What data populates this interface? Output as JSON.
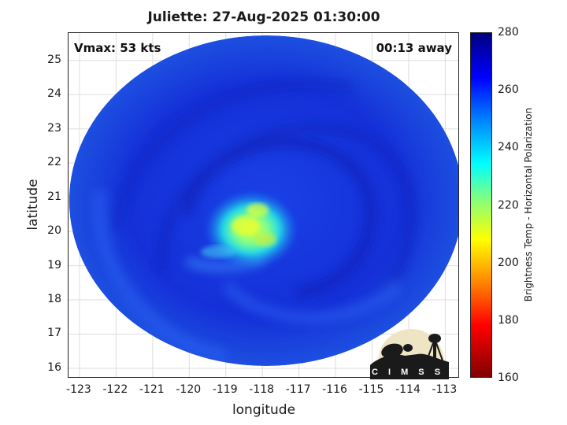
{
  "title": "Juliette: 27-Aug-2025 01:30:00",
  "vmax_label": "Vmax: 53 kts",
  "away_label": "00:13 away",
  "xlabel": "longitude",
  "ylabel": "latitude",
  "colorbar_label": "Brightness Temp - Horizontal Polarization",
  "x_ticks": [
    "-123",
    "-122",
    "-121",
    "-120",
    "-119",
    "-118",
    "-117",
    "-116",
    "-115",
    "-114",
    "-113"
  ],
  "y_ticks": [
    "25",
    "24",
    "23",
    "22",
    "21",
    "20",
    "19",
    "18",
    "17",
    "16"
  ],
  "colorbar_ticks": [
    "280",
    "260",
    "240",
    "220",
    "200",
    "180",
    "160"
  ],
  "logo_text": "CIMSS",
  "map": {
    "lon_range": [
      -123.3,
      -112.6
    ],
    "lat_range": [
      15.7,
      25.8
    ],
    "swath_center": {
      "lon": -117.9,
      "lat": 20.9
    },
    "storm_center": {
      "lon": -118.2,
      "lat": 20.1
    },
    "colorbar_range": [
      160,
      280
    ]
  }
}
